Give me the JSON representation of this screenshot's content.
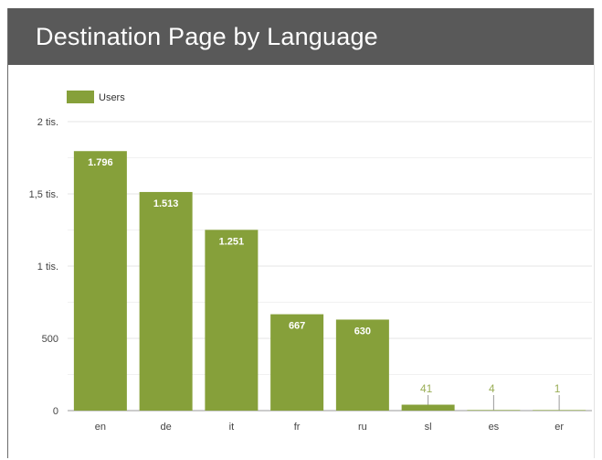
{
  "header": {
    "title": "Destination Page by Language"
  },
  "chart_data": {
    "type": "bar",
    "title": "Destination Page by Language",
    "legend": {
      "position": "top-left",
      "entries": [
        "Users"
      ]
    },
    "categories": [
      "en",
      "de",
      "it",
      "fr",
      "ru",
      "sl",
      "es",
      "er"
    ],
    "series": [
      {
        "name": "Users",
        "color": "#86a03a",
        "values": [
          1796,
          1513,
          1251,
          667,
          630,
          41,
          4,
          1
        ],
        "labels": [
          "1.796",
          "1.513",
          "1.251",
          "667",
          "630",
          "41",
          "4",
          "1"
        ]
      }
    ],
    "y_ticks": [
      {
        "value": 0,
        "label": "0"
      },
      {
        "value": 500,
        "label": "500"
      },
      {
        "value": 1000,
        "label": "1 tis."
      },
      {
        "value": 1500,
        "label": "1,5 tis."
      },
      {
        "value": 2000,
        "label": "2 tis."
      }
    ],
    "ylim": [
      0,
      2000
    ],
    "grid": true,
    "xlabel": "",
    "ylabel": ""
  }
}
